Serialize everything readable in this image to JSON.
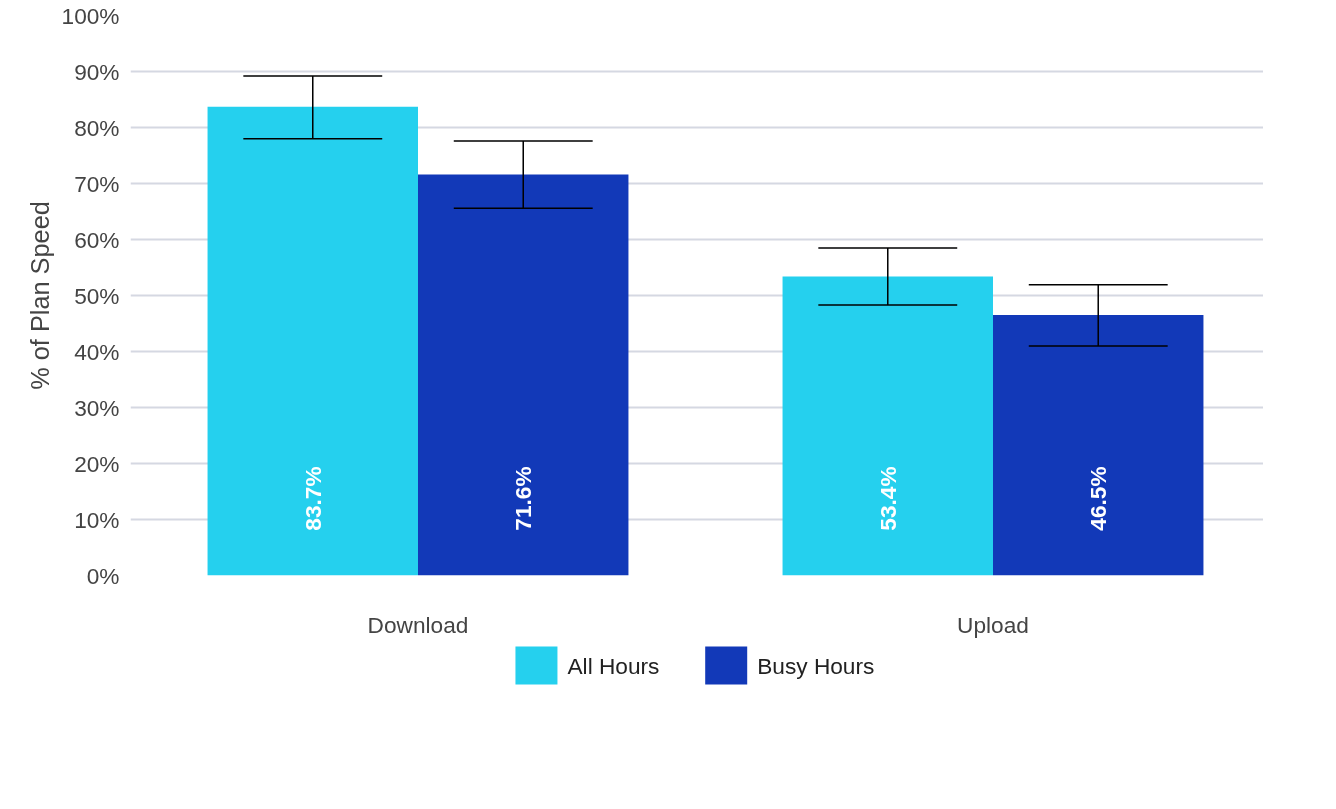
{
  "chart_data": {
    "type": "bar",
    "ylabel": "% of Plan Speed",
    "categories": [
      "Download",
      "Upload"
    ],
    "series": [
      {
        "name": "All Hours",
        "color": "#25d0ee",
        "values": [
          83.7,
          53.4
        ],
        "errors": [
          [
            78.0,
            89.2
          ],
          [
            48.3,
            58.5
          ]
        ],
        "value_labels": [
          "83.7%",
          "53.4%"
        ]
      },
      {
        "name": "Busy Hours",
        "color": "#1239b8",
        "values": [
          71.6,
          46.5
        ],
        "errors": [
          [
            65.6,
            77.6
          ],
          [
            41.0,
            51.9
          ]
        ],
        "value_labels": [
          "71.6%",
          "46.5%"
        ]
      }
    ],
    "ylim": [
      0,
      100
    ],
    "yticks": [
      {
        "value": 0,
        "label": "0%"
      },
      {
        "value": 10,
        "label": "10%"
      },
      {
        "value": 20,
        "label": "20%"
      },
      {
        "value": 30,
        "label": "30%"
      },
      {
        "value": 40,
        "label": "40%"
      },
      {
        "value": 50,
        "label": "50%"
      },
      {
        "value": 60,
        "label": "60%"
      },
      {
        "value": 70,
        "label": "70%"
      },
      {
        "value": 80,
        "label": "80%"
      },
      {
        "value": 90,
        "label": "90%"
      },
      {
        "value": 100,
        "label": "100%"
      }
    ],
    "grid": "y",
    "legend": "bottom"
  }
}
